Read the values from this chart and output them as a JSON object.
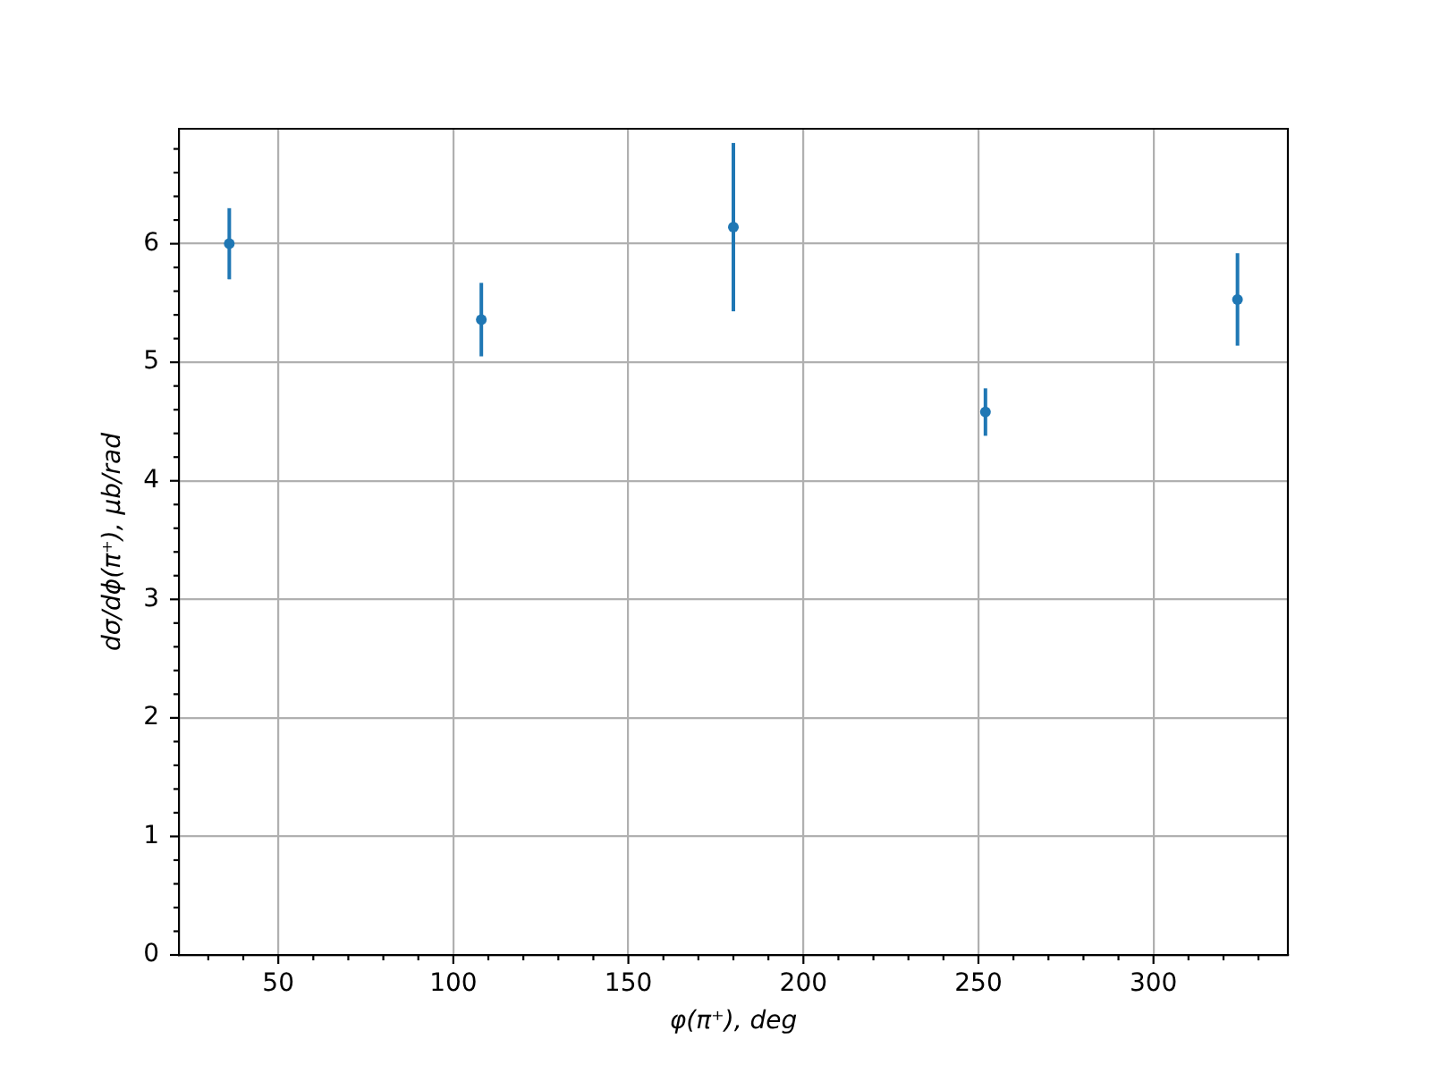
{
  "chart_data": {
    "type": "scatter",
    "xlabel": "φ(π⁺), deg",
    "ylabel": "dσ/dϕ(π⁺), μb/rad",
    "x": [
      36,
      108,
      180,
      252,
      324
    ],
    "series": [
      {
        "color": "#1f77b4",
        "values": [
          6.0,
          5.36,
          6.14,
          4.58,
          5.53
        ],
        "errors": [
          0.3,
          0.31,
          0.71,
          0.2,
          0.39
        ]
      }
    ],
    "xlim": [
      21.6,
      338.4
    ],
    "ylim": [
      0,
      6.97
    ],
    "xticks": [
      {
        "value": 30,
        "label": null
      },
      {
        "value": 40,
        "label": null
      },
      50,
      {
        "value": 60,
        "label": null
      },
      {
        "value": 70,
        "label": null
      },
      {
        "value": 80,
        "label": null
      },
      {
        "value": 90,
        "label": null
      },
      100,
      {
        "value": 110,
        "label": null
      },
      {
        "value": 120,
        "label": null
      },
      {
        "value": 130,
        "label": null
      },
      {
        "value": 140,
        "label": null
      },
      150,
      {
        "value": 160,
        "label": null
      },
      {
        "value": 170,
        "label": null
      },
      {
        "value": 180,
        "label": null
      },
      {
        "value": 190,
        "label": null
      },
      200,
      {
        "value": 210,
        "label": null
      },
      {
        "value": 220,
        "label": null
      },
      {
        "value": 230,
        "label": null
      },
      {
        "value": 240,
        "label": null
      },
      250,
      {
        "value": 260,
        "label": null
      },
      {
        "value": 270,
        "label": null
      },
      {
        "value": 280,
        "label": null
      },
      {
        "value": 290,
        "label": null
      },
      300,
      {
        "value": 310,
        "label": null
      },
      {
        "value": 320,
        "label": null
      },
      {
        "value": 330,
        "label": null
      }
    ],
    "yticks": [
      0,
      {
        "value": 0.2,
        "label": null
      },
      {
        "value": 0.4,
        "label": null
      },
      {
        "value": 0.6,
        "label": null
      },
      {
        "value": 0.8,
        "label": null
      },
      1,
      {
        "value": 1.2,
        "label": null
      },
      {
        "value": 1.4,
        "label": null
      },
      {
        "value": 1.6,
        "label": null
      },
      {
        "value": 1.8,
        "label": null
      },
      2,
      {
        "value": 2.2,
        "label": null
      },
      {
        "value": 2.4,
        "label": null
      },
      {
        "value": 2.6,
        "label": null
      },
      {
        "value": 2.8,
        "label": null
      },
      3,
      {
        "value": 3.2,
        "label": null
      },
      {
        "value": 3.4,
        "label": null
      },
      {
        "value": 3.6,
        "label": null
      },
      {
        "value": 3.8,
        "label": null
      },
      4,
      {
        "value": 4.2,
        "label": null
      },
      {
        "value": 4.4,
        "label": null
      },
      {
        "value": 4.6,
        "label": null
      },
      {
        "value": 4.8,
        "label": null
      },
      5,
      {
        "value": 5.2,
        "label": null
      },
      {
        "value": 5.4,
        "label": null
      },
      {
        "value": 5.6,
        "label": null
      },
      {
        "value": 5.8,
        "label": null
      },
      6,
      {
        "value": 6.2,
        "label": null
      },
      {
        "value": 6.4,
        "label": null
      },
      {
        "value": 6.6,
        "label": null
      },
      {
        "value": 6.8,
        "label": null
      }
    ],
    "grid": true,
    "marker": "circle"
  }
}
